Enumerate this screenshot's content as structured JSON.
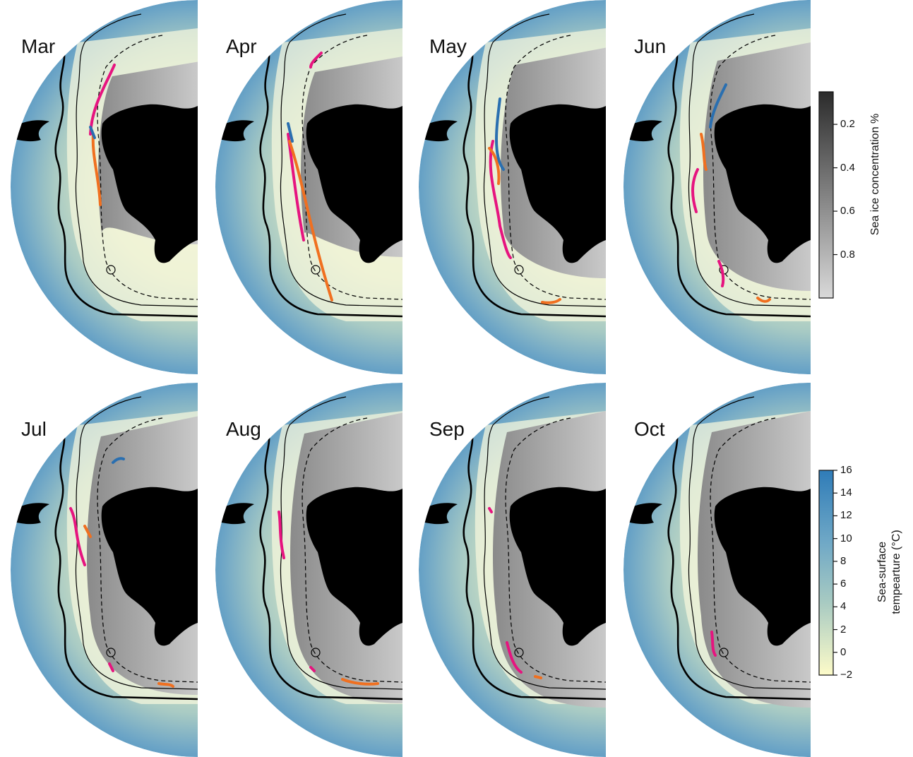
{
  "panels": [
    {
      "month": "Mar"
    },
    {
      "month": "Apr"
    },
    {
      "month": "May"
    },
    {
      "month": "Jun"
    },
    {
      "month": "Jul"
    },
    {
      "month": "Aug"
    },
    {
      "month": "Sep"
    },
    {
      "month": "Oct"
    }
  ],
  "colorbars": {
    "sea_ice": {
      "title": "Sea ice concentration %",
      "ticks": [
        "0.2",
        "0.4",
        "0.6",
        "0.8"
      ],
      "tick_values": [
        0.2,
        0.4,
        0.6,
        0.8
      ],
      "range": [
        0.05,
        1.0
      ],
      "color_low": "#d9d9d9",
      "color_high": "#2b2b2b"
    },
    "sst": {
      "title_line1": "Sea-surface",
      "title_line2": "tempearture (°C)",
      "ticks": [
        "16",
        "14",
        "12",
        "10",
        "8",
        "6",
        "4",
        "2",
        "0",
        "−2"
      ],
      "tick_values": [
        16,
        14,
        12,
        10,
        8,
        6,
        4,
        2,
        0,
        -2
      ],
      "range": [
        -2,
        16
      ],
      "color_low": "#fdfbc9",
      "color_high": "#2f7cb8"
    }
  },
  "track_colors": {
    "pink": "#e6147f",
    "orange": "#f07020",
    "blue": "#2a6fb0"
  },
  "map_colors": {
    "land": "#000000",
    "ocean_far": "#4a93c4",
    "ocean_mid": "#8fbdc6",
    "ocean_near": "#e9efc6"
  }
}
